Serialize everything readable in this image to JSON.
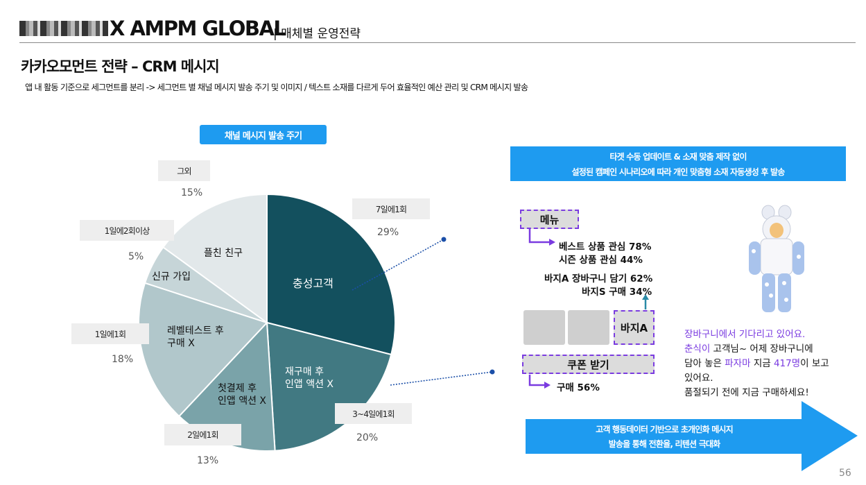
{
  "header": {
    "brand": "X AMPM GLOBAL",
    "section": "| 매체별 운영전략"
  },
  "page_title": "카카오모먼트 전략 – CRM 메시지",
  "page_subtitle": "앱 내 활동 기준으로 세그먼트를 분리 -> 세그먼트 별 채널 메시지 발송 주기 및 이미지 / 텍스트 소재를 다르게 두어 효율적인 예산 관리 및 CRM 메시지 발송",
  "chart_caption": "채널 메시지 발송 주기",
  "chart_data": {
    "type": "pie",
    "title": "채널 메시지 발송 주기",
    "slices": [
      {
        "label": "충성고객",
        "frequency": "7일에1회",
        "value": 29,
        "color": "#13505e"
      },
      {
        "label": "재구매 후 인앱 액션 X",
        "frequency": "3~4일에1회",
        "value": 20,
        "color": "#417982"
      },
      {
        "label": "첫결제 후 인앱 액션 X",
        "frequency": "2일에1회",
        "value": 13,
        "color": "#7aa3a9"
      },
      {
        "label": "레벨테스트 후 구매 X",
        "frequency": "1일에1회",
        "value": 18,
        "color": "#b1c7cb"
      },
      {
        "label": "신규 가입",
        "frequency": "1일에2회이상",
        "value": 5,
        "color": "#c6d5d8"
      },
      {
        "label": "플친 친구",
        "frequency": "그외",
        "value": 15,
        "color": "#e2e8ea"
      }
    ]
  },
  "pie_labels": {
    "s0": "충성고객",
    "s1a": "재구매 후",
    "s1b": "인앱 액션 X",
    "s2a": "첫결제 후",
    "s2b": "인앱 액션 X",
    "s3a": "레벨테스트 후",
    "s3b": "구매 X",
    "s4": "신규 가입",
    "s5": "플친 친구"
  },
  "legend": {
    "f0": "7일에1회",
    "p0": "29%",
    "f1": "3~4일에1회",
    "p1": "20%",
    "f2": "2일에1회",
    "p2": "13%",
    "f3": "1일에1회",
    "p3": "18%",
    "f4": "1일에2회이상",
    "p4": "5%",
    "f5": "그외",
    "p5": "15%"
  },
  "right_panel": {
    "banner_line1": "타겟 수동 업데이트 & 소재 맞춤 제작 없이",
    "banner_line2": "설정된 캠페인 시나리오에 따라 개인 맞춤형 소재 자동생성 후 발송",
    "menu_label": "메뉴",
    "stat_best": "베스트 상품 관심 78%",
    "stat_season": "시즌 상품 관심 44%",
    "stat_cart": "바지A 장바구니 담기 62%",
    "stat_buy": "바지S 구매 34%",
    "product_a": "바지A",
    "coupon_label": "쿠폰 받기",
    "stat_purchase": "구매 56%",
    "msg_line1": "장바구니에서 기다리고 있어요.",
    "msg_name": "춘식이",
    "msg_line2_rest": " 고객님~  어제 장바구니에",
    "msg_line3_a": "담아 놓은 ",
    "msg_product": "파자마",
    "msg_line3_b": " 지금 ",
    "msg_count": "417명",
    "msg_line3_c": "이 보고",
    "msg_line4": "있어요.",
    "msg_line5": "품절되기 전에 지금 구매하세요!",
    "arrow_line1": "고객 행동데이터 기반으로 초개인화 메시지",
    "arrow_line2": "발송을 통해 전환율, 리텐션 극대화"
  },
  "page_number": "56"
}
